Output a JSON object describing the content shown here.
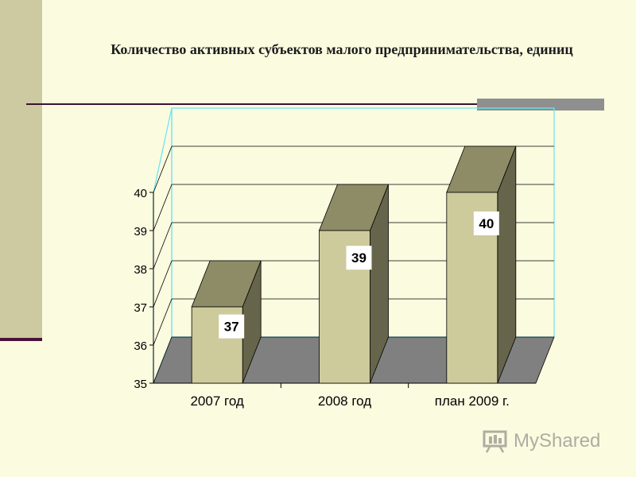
{
  "title": "Количество активных субъектов малого предпринимательства, единиц",
  "watermark": "MyShared",
  "colors": {
    "background": "#fbfbe0",
    "band": "#cdc9a0",
    "bar_front": "#cdca9c",
    "bar_top": "#8e8c66",
    "bar_side": "#66644a",
    "floor": "#808080",
    "grid": "#000000",
    "frame": "#66e6ee"
  },
  "chart_data": {
    "type": "bar",
    "title": "Количество активных субъектов малого предпринимательства, единиц",
    "categories": [
      "2007 год",
      "2008 год",
      "план 2009 г."
    ],
    "values": [
      37,
      39,
      40
    ],
    "data_labels": [
      "37",
      "39",
      "40"
    ],
    "ylim": [
      35,
      40
    ],
    "yticks": [
      "35",
      "36",
      "37",
      "38",
      "39",
      "40"
    ],
    "grid": true,
    "three_d": true,
    "legend": "none"
  }
}
